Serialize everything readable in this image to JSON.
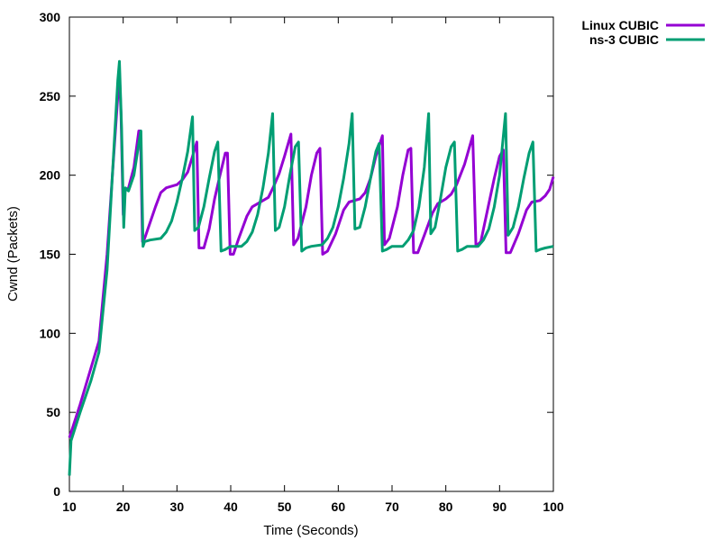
{
  "chart_data": {
    "type": "line",
    "title": "",
    "xlabel": "Time (Seconds)",
    "ylabel": "Cwnd (Packets)",
    "xlim": [
      10,
      100
    ],
    "ylim": [
      0,
      300
    ],
    "xticks": [
      10,
      20,
      30,
      40,
      50,
      60,
      70,
      80,
      90,
      100
    ],
    "yticks": [
      0,
      50,
      100,
      150,
      200,
      250,
      300
    ],
    "grid": false,
    "legend_position": "top-right outside",
    "series": [
      {
        "name": "Linux CUBIC",
        "color": "#9400d3",
        "points": [
          [
            10,
            34
          ],
          [
            12,
            55
          ],
          [
            14,
            78
          ],
          [
            15.5,
            95
          ],
          [
            17,
            150
          ],
          [
            18,
            200
          ],
          [
            19,
            250
          ],
          [
            19.3,
            265
          ],
          [
            19.6,
            238
          ],
          [
            20,
            175
          ],
          [
            20.3,
            190
          ],
          [
            21,
            192
          ],
          [
            22,
            205
          ],
          [
            22.9,
            228
          ],
          [
            23.2,
            228
          ],
          [
            23.6,
            158
          ],
          [
            24,
            160
          ],
          [
            25,
            170
          ],
          [
            26,
            180
          ],
          [
            27,
            189
          ],
          [
            28,
            192
          ],
          [
            30,
            194
          ],
          [
            31,
            197
          ],
          [
            32,
            202
          ],
          [
            33,
            213
          ],
          [
            33.7,
            221
          ],
          [
            34.1,
            154
          ],
          [
            35,
            154
          ],
          [
            36,
            166
          ],
          [
            37,
            185
          ],
          [
            38,
            200
          ],
          [
            39,
            214
          ],
          [
            39.4,
            214
          ],
          [
            39.9,
            150
          ],
          [
            40.5,
            150
          ],
          [
            41.5,
            160
          ],
          [
            43,
            174
          ],
          [
            44,
            180
          ],
          [
            46,
            184
          ],
          [
            47,
            186
          ],
          [
            48,
            193
          ],
          [
            49,
            201
          ],
          [
            50,
            212
          ],
          [
            51.2,
            226
          ],
          [
            51.7,
            156
          ],
          [
            52.5,
            160
          ],
          [
            54,
            180
          ],
          [
            55,
            200
          ],
          [
            56,
            214
          ],
          [
            56.6,
            217
          ],
          [
            57.1,
            150
          ],
          [
            58,
            152
          ],
          [
            59.5,
            163
          ],
          [
            61,
            178
          ],
          [
            62,
            183
          ],
          [
            64,
            185
          ],
          [
            65,
            189
          ],
          [
            66,
            198
          ],
          [
            67,
            212
          ],
          [
            68.2,
            225
          ],
          [
            68.6,
            156
          ],
          [
            69.5,
            160
          ],
          [
            71,
            180
          ],
          [
            72,
            200
          ],
          [
            73,
            216
          ],
          [
            73.5,
            217
          ],
          [
            74,
            151
          ],
          [
            74.8,
            151
          ],
          [
            76,
            162
          ],
          [
            77.5,
            176
          ],
          [
            78.5,
            182
          ],
          [
            80,
            185
          ],
          [
            81,
            188
          ],
          [
            82,
            194
          ],
          [
            83.5,
            207
          ],
          [
            85,
            225
          ],
          [
            85.6,
            155
          ],
          [
            86.5,
            158
          ],
          [
            88,
            182
          ],
          [
            89,
            198
          ],
          [
            90,
            212
          ],
          [
            90.7,
            216
          ],
          [
            91.2,
            151
          ],
          [
            92,
            151
          ],
          [
            93.5,
            163
          ],
          [
            95,
            178
          ],
          [
            96,
            183
          ],
          [
            97.5,
            184
          ],
          [
            98.5,
            187
          ],
          [
            99.3,
            191
          ],
          [
            100,
            199
          ]
        ]
      },
      {
        "name": "ns-3 CUBIC",
        "color": "#009e73",
        "points": [
          [
            10,
            10
          ],
          [
            10.3,
            32
          ],
          [
            12,
            50
          ],
          [
            14,
            70
          ],
          [
            15.5,
            88
          ],
          [
            17,
            140
          ],
          [
            18,
            200
          ],
          [
            19,
            260
          ],
          [
            19.3,
            272
          ],
          [
            19.7,
            230
          ],
          [
            20.1,
            167
          ],
          [
            20.4,
            192
          ],
          [
            21,
            190
          ],
          [
            22,
            200
          ],
          [
            22.9,
            220
          ],
          [
            23.3,
            228
          ],
          [
            23.7,
            155
          ],
          [
            24,
            158
          ],
          [
            25,
            159
          ],
          [
            27,
            160
          ],
          [
            28,
            164
          ],
          [
            29,
            171
          ],
          [
            30,
            183
          ],
          [
            31,
            198
          ],
          [
            32,
            215
          ],
          [
            32.9,
            237
          ],
          [
            33.3,
            165
          ],
          [
            34,
            167
          ],
          [
            35,
            180
          ],
          [
            36,
            198
          ],
          [
            37,
            215
          ],
          [
            37.6,
            221
          ],
          [
            38.2,
            152
          ],
          [
            39,
            153
          ],
          [
            40,
            155
          ],
          [
            42,
            155
          ],
          [
            43,
            158
          ],
          [
            44,
            164
          ],
          [
            45,
            175
          ],
          [
            46,
            192
          ],
          [
            47,
            214
          ],
          [
            47.8,
            239
          ],
          [
            48.3,
            165
          ],
          [
            49,
            167
          ],
          [
            50,
            180
          ],
          [
            51,
            200
          ],
          [
            52,
            218
          ],
          [
            52.6,
            221
          ],
          [
            53.2,
            152
          ],
          [
            54,
            154
          ],
          [
            55,
            155
          ],
          [
            57,
            156
          ],
          [
            58,
            160
          ],
          [
            59,
            167
          ],
          [
            60,
            180
          ],
          [
            61,
            198
          ],
          [
            62,
            220
          ],
          [
            62.6,
            239
          ],
          [
            63.1,
            166
          ],
          [
            64,
            167
          ],
          [
            65,
            180
          ],
          [
            66,
            198
          ],
          [
            67,
            215
          ],
          [
            67.6,
            220
          ],
          [
            68.2,
            152
          ],
          [
            69,
            153
          ],
          [
            70,
            155
          ],
          [
            72,
            155
          ],
          [
            73,
            159
          ],
          [
            74,
            165
          ],
          [
            75,
            180
          ],
          [
            76,
            205
          ],
          [
            76.8,
            239
          ],
          [
            77.2,
            163
          ],
          [
            78,
            167
          ],
          [
            79,
            185
          ],
          [
            80,
            205
          ],
          [
            81,
            218
          ],
          [
            81.6,
            221
          ],
          [
            82.2,
            152
          ],
          [
            83,
            153
          ],
          [
            84,
            155
          ],
          [
            86,
            155
          ],
          [
            87,
            159
          ],
          [
            88,
            166
          ],
          [
            89,
            180
          ],
          [
            90,
            200
          ],
          [
            91.1,
            239
          ],
          [
            91.6,
            162
          ],
          [
            92.5,
            167
          ],
          [
            93.5,
            180
          ],
          [
            94.5,
            198
          ],
          [
            95.5,
            214
          ],
          [
            96.2,
            221
          ],
          [
            96.8,
            152
          ],
          [
            97.5,
            153
          ],
          [
            98.5,
            154
          ],
          [
            100,
            155
          ]
        ]
      }
    ]
  }
}
